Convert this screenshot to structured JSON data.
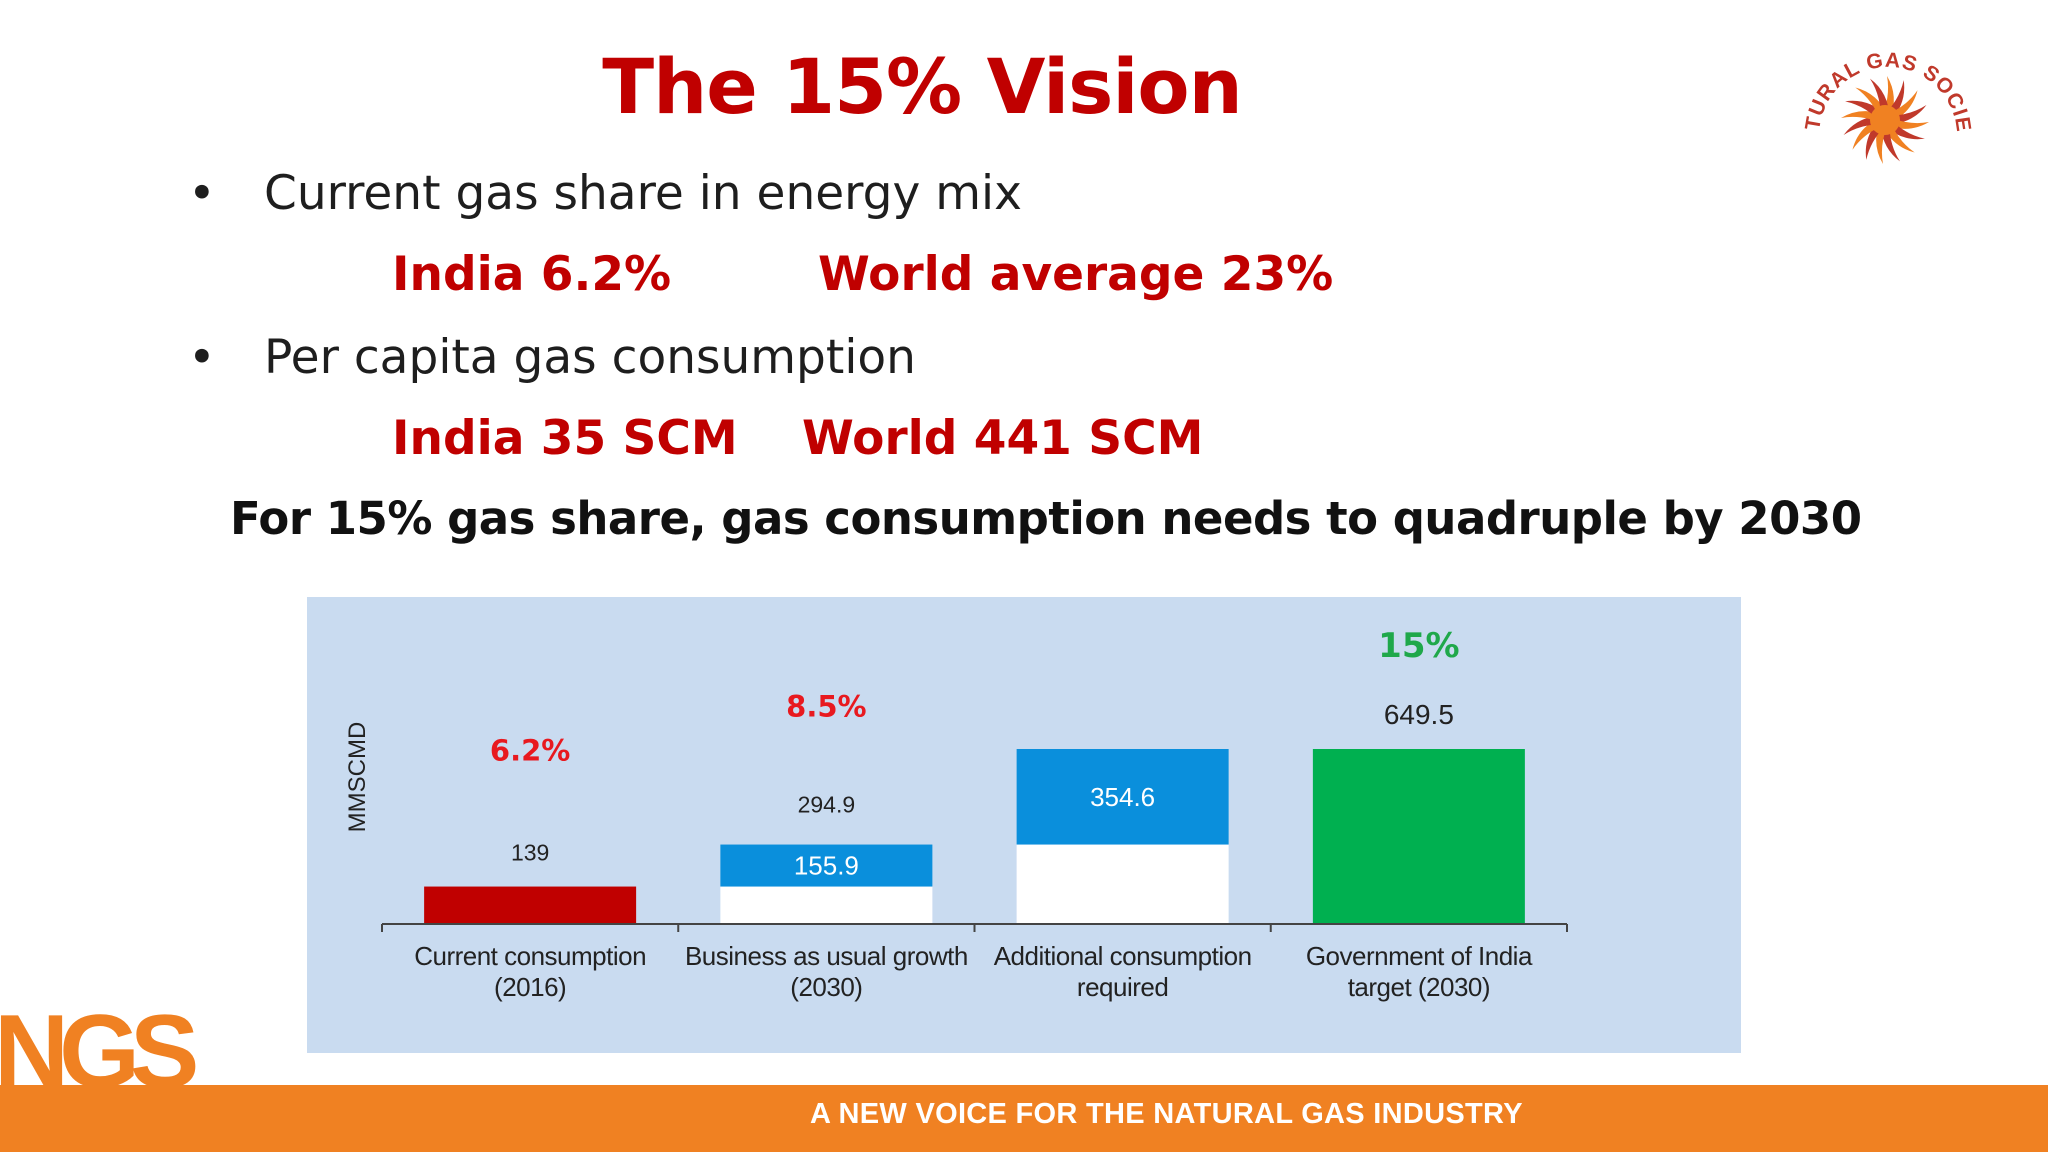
{
  "slide": {
    "title": "The 15% Vision",
    "bullets": [
      {
        "text": "Current gas share in energy mix",
        "stat_left": "India 6.2%",
        "stat_right": "World average 23%"
      },
      {
        "text": "Per capita gas consumption",
        "stat_left": "India 35 SCM",
        "stat_right": "World 441 SCM"
      }
    ],
    "headline": "For 15% gas share, gas consumption needs to quadruple by 2030",
    "bullet_glyph": "•"
  },
  "logo": {
    "text": "NATURAL GAS SOCIETY",
    "icon": "sunburst-logo-icon"
  },
  "footer": {
    "mark": "NGS",
    "tagline": "A NEW VOICE FOR THE NATURAL GAS INDUSTRY"
  },
  "colors": {
    "title_red": "#c00000",
    "bar_red": "#c00000",
    "bar_blue": "#0a8fdc",
    "bar_green": "#00b050",
    "pct_red": "#e8191f",
    "pct_green": "#1fa84a",
    "panel_bg": "#c9dbf0",
    "footer_orange": "#f08122"
  },
  "chart_data": {
    "type": "waterfall",
    "ylabel": "MMSCMD",
    "categories": [
      "Current consumption (2016)",
      "Business as usual growth (2030)",
      "Additional consumption required",
      "Government of India target (2030)"
    ],
    "category_lines": [
      [
        "Current consumption",
        "(2016)"
      ],
      [
        "Business as usual growth",
        "(2030)"
      ],
      [
        "Additional consumption",
        "required"
      ],
      [
        "Government of India",
        "target (2030)"
      ]
    ],
    "bars": [
      {
        "base": 0,
        "value": 139,
        "kind": "total",
        "color": "red",
        "label": "139",
        "label_pos": "above",
        "share": "6.2%",
        "share_color": "red"
      },
      {
        "base": 139,
        "value": 155.9,
        "kind": "increment",
        "color": "blue",
        "label": "155.9",
        "label_pos": "inside",
        "total_label": "294.9",
        "share": "8.5%",
        "share_color": "red"
      },
      {
        "base": 294.9,
        "value": 354.6,
        "kind": "increment",
        "color": "blue",
        "label": "354.6",
        "label_pos": "inside"
      },
      {
        "base": 0,
        "value": 649.5,
        "kind": "total",
        "color": "green",
        "label": "649.5",
        "label_pos": "above",
        "share": "15%",
        "share_color": "green"
      }
    ],
    "ylim": [
      0,
      649.5
    ],
    "grid": false
  }
}
